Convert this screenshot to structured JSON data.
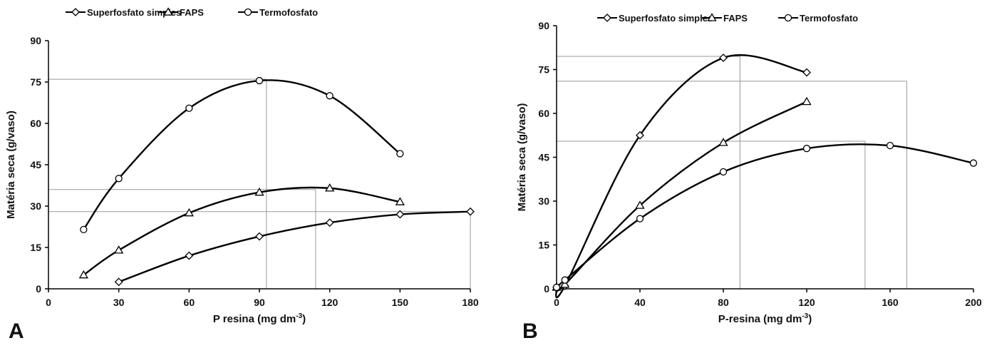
{
  "chart_data": [
    {
      "type": "line",
      "panel_label": "A",
      "x_label": "P resina (mg dm",
      "x_label_sup": "-3",
      "x_label_end": ")",
      "y_label": "Matéria seca (g/vaso)",
      "xlim": [
        0,
        180
      ],
      "xticks": [
        0,
        30,
        60,
        90,
        120,
        150,
        180
      ],
      "ylim": [
        0,
        90
      ],
      "yticks": [
        0,
        15,
        30,
        45,
        60,
        75,
        90
      ],
      "series": [
        {
          "name": "Superfosfato simples",
          "marker": "diamond",
          "color": "#000000",
          "x": [
            30,
            60,
            90,
            120,
            150,
            180
          ],
          "values": [
            2.5,
            12,
            19,
            24,
            27,
            28
          ]
        },
        {
          "name": "FAPS",
          "marker": "triangle",
          "color": "#000000",
          "x": [
            15,
            30,
            60,
            90,
            120,
            150
          ],
          "values": [
            5,
            14,
            27.5,
            35,
            36.5,
            31.5
          ]
        },
        {
          "name": "Termofosfato",
          "marker": "circle",
          "color": "#000000",
          "x": [
            15,
            30,
            60,
            90,
            120,
            150
          ],
          "values": [
            21.5,
            40,
            65.5,
            75.5,
            70,
            49
          ]
        }
      ],
      "guides": [
        {
          "x": 93,
          "y": 76
        },
        {
          "x": 114,
          "y": 36
        },
        {
          "x": 180,
          "y": 28
        }
      ]
    },
    {
      "type": "line",
      "panel_label": "B",
      "x_label": "P-resina (mg dm",
      "x_label_sup": "-3",
      "x_label_end": ")",
      "y_label": "Matéria seca (g/vaso)",
      "xlim": [
        0,
        200
      ],
      "xticks": [
        0,
        40,
        80,
        120,
        160,
        200
      ],
      "ylim": [
        0,
        90
      ],
      "yticks": [
        0,
        15,
        30,
        45,
        60,
        75,
        90
      ],
      "series": [
        {
          "name": "Superfosfato simples",
          "marker": "diamond",
          "color": "#000000",
          "x": [
            0,
            4,
            40,
            80,
            120
          ],
          "values": [
            0.5,
            1,
            52.5,
            79,
            74
          ]
        },
        {
          "name": "FAPS",
          "marker": "triangle",
          "color": "#000000",
          "x": [
            0,
            4,
            40,
            80,
            120
          ],
          "values": [
            0.5,
            1.5,
            28.5,
            50,
            64
          ]
        },
        {
          "name": "Termofosfato",
          "marker": "circle",
          "color": "#000000",
          "x": [
            0,
            4,
            40,
            80,
            120,
            160,
            200
          ],
          "values": [
            0.5,
            3,
            24,
            40,
            48,
            49,
            43
          ]
        }
      ],
      "guides": [
        {
          "x": 88,
          "y": 79.5
        },
        {
          "x": 168,
          "y": 71
        },
        {
          "x": 148,
          "y": 50.5
        }
      ]
    }
  ]
}
